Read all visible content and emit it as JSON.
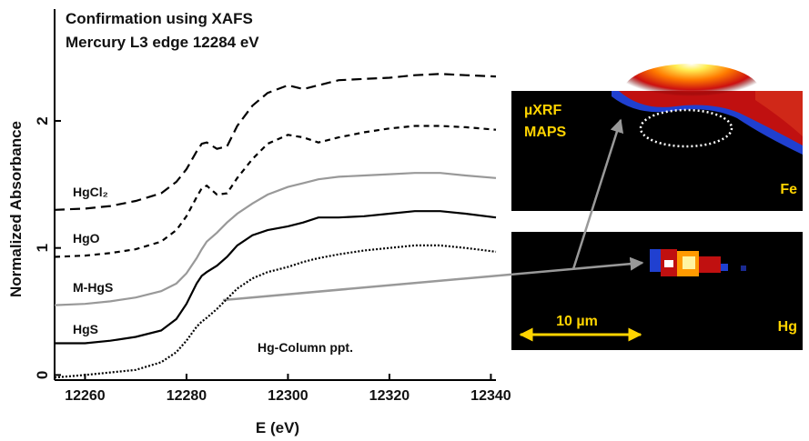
{
  "chart_data": {
    "type": "line",
    "title": "Confirmation using XAFS",
    "subtitle": "Mercury L3 edge 12284 eV",
    "x_label": "E (eV)",
    "y_label": "Normalized Absorbance",
    "x": [
      12254,
      12260,
      12265,
      12270,
      12275,
      12278,
      12280,
      12282,
      12283,
      12284,
      12286,
      12288,
      12290,
      12293,
      12296,
      12300,
      12303,
      12306,
      12310,
      12315,
      12320,
      12325,
      12330,
      12335,
      12341
    ],
    "xlim": [
      12254,
      12341
    ],
    "xticks": [
      12260,
      12280,
      12300,
      12320,
      12340
    ],
    "ylim": [
      -0.04,
      2.88
    ],
    "yticks": [
      0,
      1,
      2
    ],
    "series": [
      {
        "name": "HgCl₂",
        "color": "#000000",
        "dash": "11 6",
        "values": [
          1.3,
          1.31,
          1.33,
          1.37,
          1.43,
          1.52,
          1.62,
          1.76,
          1.82,
          1.83,
          1.78,
          1.8,
          1.96,
          2.12,
          2.22,
          2.28,
          2.25,
          2.28,
          2.32,
          2.33,
          2.34,
          2.36,
          2.37,
          2.36,
          2.35
        ]
      },
      {
        "name": "HgO",
        "color": "#000000",
        "dash": "6 5",
        "values": [
          0.93,
          0.94,
          0.96,
          0.99,
          1.05,
          1.14,
          1.25,
          1.4,
          1.47,
          1.49,
          1.42,
          1.43,
          1.55,
          1.7,
          1.82,
          1.89,
          1.87,
          1.83,
          1.87,
          1.91,
          1.94,
          1.96,
          1.96,
          1.95,
          1.93
        ]
      },
      {
        "name": "M-HgS",
        "color": "#999999",
        "dash": "none",
        "values": [
          0.55,
          0.56,
          0.58,
          0.61,
          0.66,
          0.72,
          0.8,
          0.92,
          0.99,
          1.05,
          1.12,
          1.2,
          1.27,
          1.35,
          1.42,
          1.48,
          1.51,
          1.54,
          1.56,
          1.57,
          1.58,
          1.59,
          1.59,
          1.57,
          1.55
        ]
      },
      {
        "name": "HgS",
        "color": "#000000",
        "dash": "none",
        "values": [
          0.25,
          0.25,
          0.27,
          0.3,
          0.35,
          0.44,
          0.56,
          0.72,
          0.78,
          0.81,
          0.86,
          0.93,
          1.02,
          1.1,
          1.14,
          1.17,
          1.2,
          1.24,
          1.24,
          1.25,
          1.27,
          1.29,
          1.29,
          1.27,
          1.24
        ]
      },
      {
        "name": "Hg-Column ppt.",
        "color": "#000000",
        "dash": "2 2",
        "values": [
          -0.02,
          0.0,
          0.02,
          0.04,
          0.1,
          0.18,
          0.27,
          0.38,
          0.42,
          0.45,
          0.52,
          0.6,
          0.68,
          0.76,
          0.81,
          0.85,
          0.89,
          0.92,
          0.95,
          0.98,
          1.0,
          1.02,
          1.02,
          1.0,
          0.97
        ]
      }
    ]
  },
  "panels": [
    {
      "labels": [
        "µXRF",
        "MAPS",
        "Fe"
      ]
    },
    {
      "labels": [
        "Hg",
        "10 µm"
      ]
    }
  ]
}
